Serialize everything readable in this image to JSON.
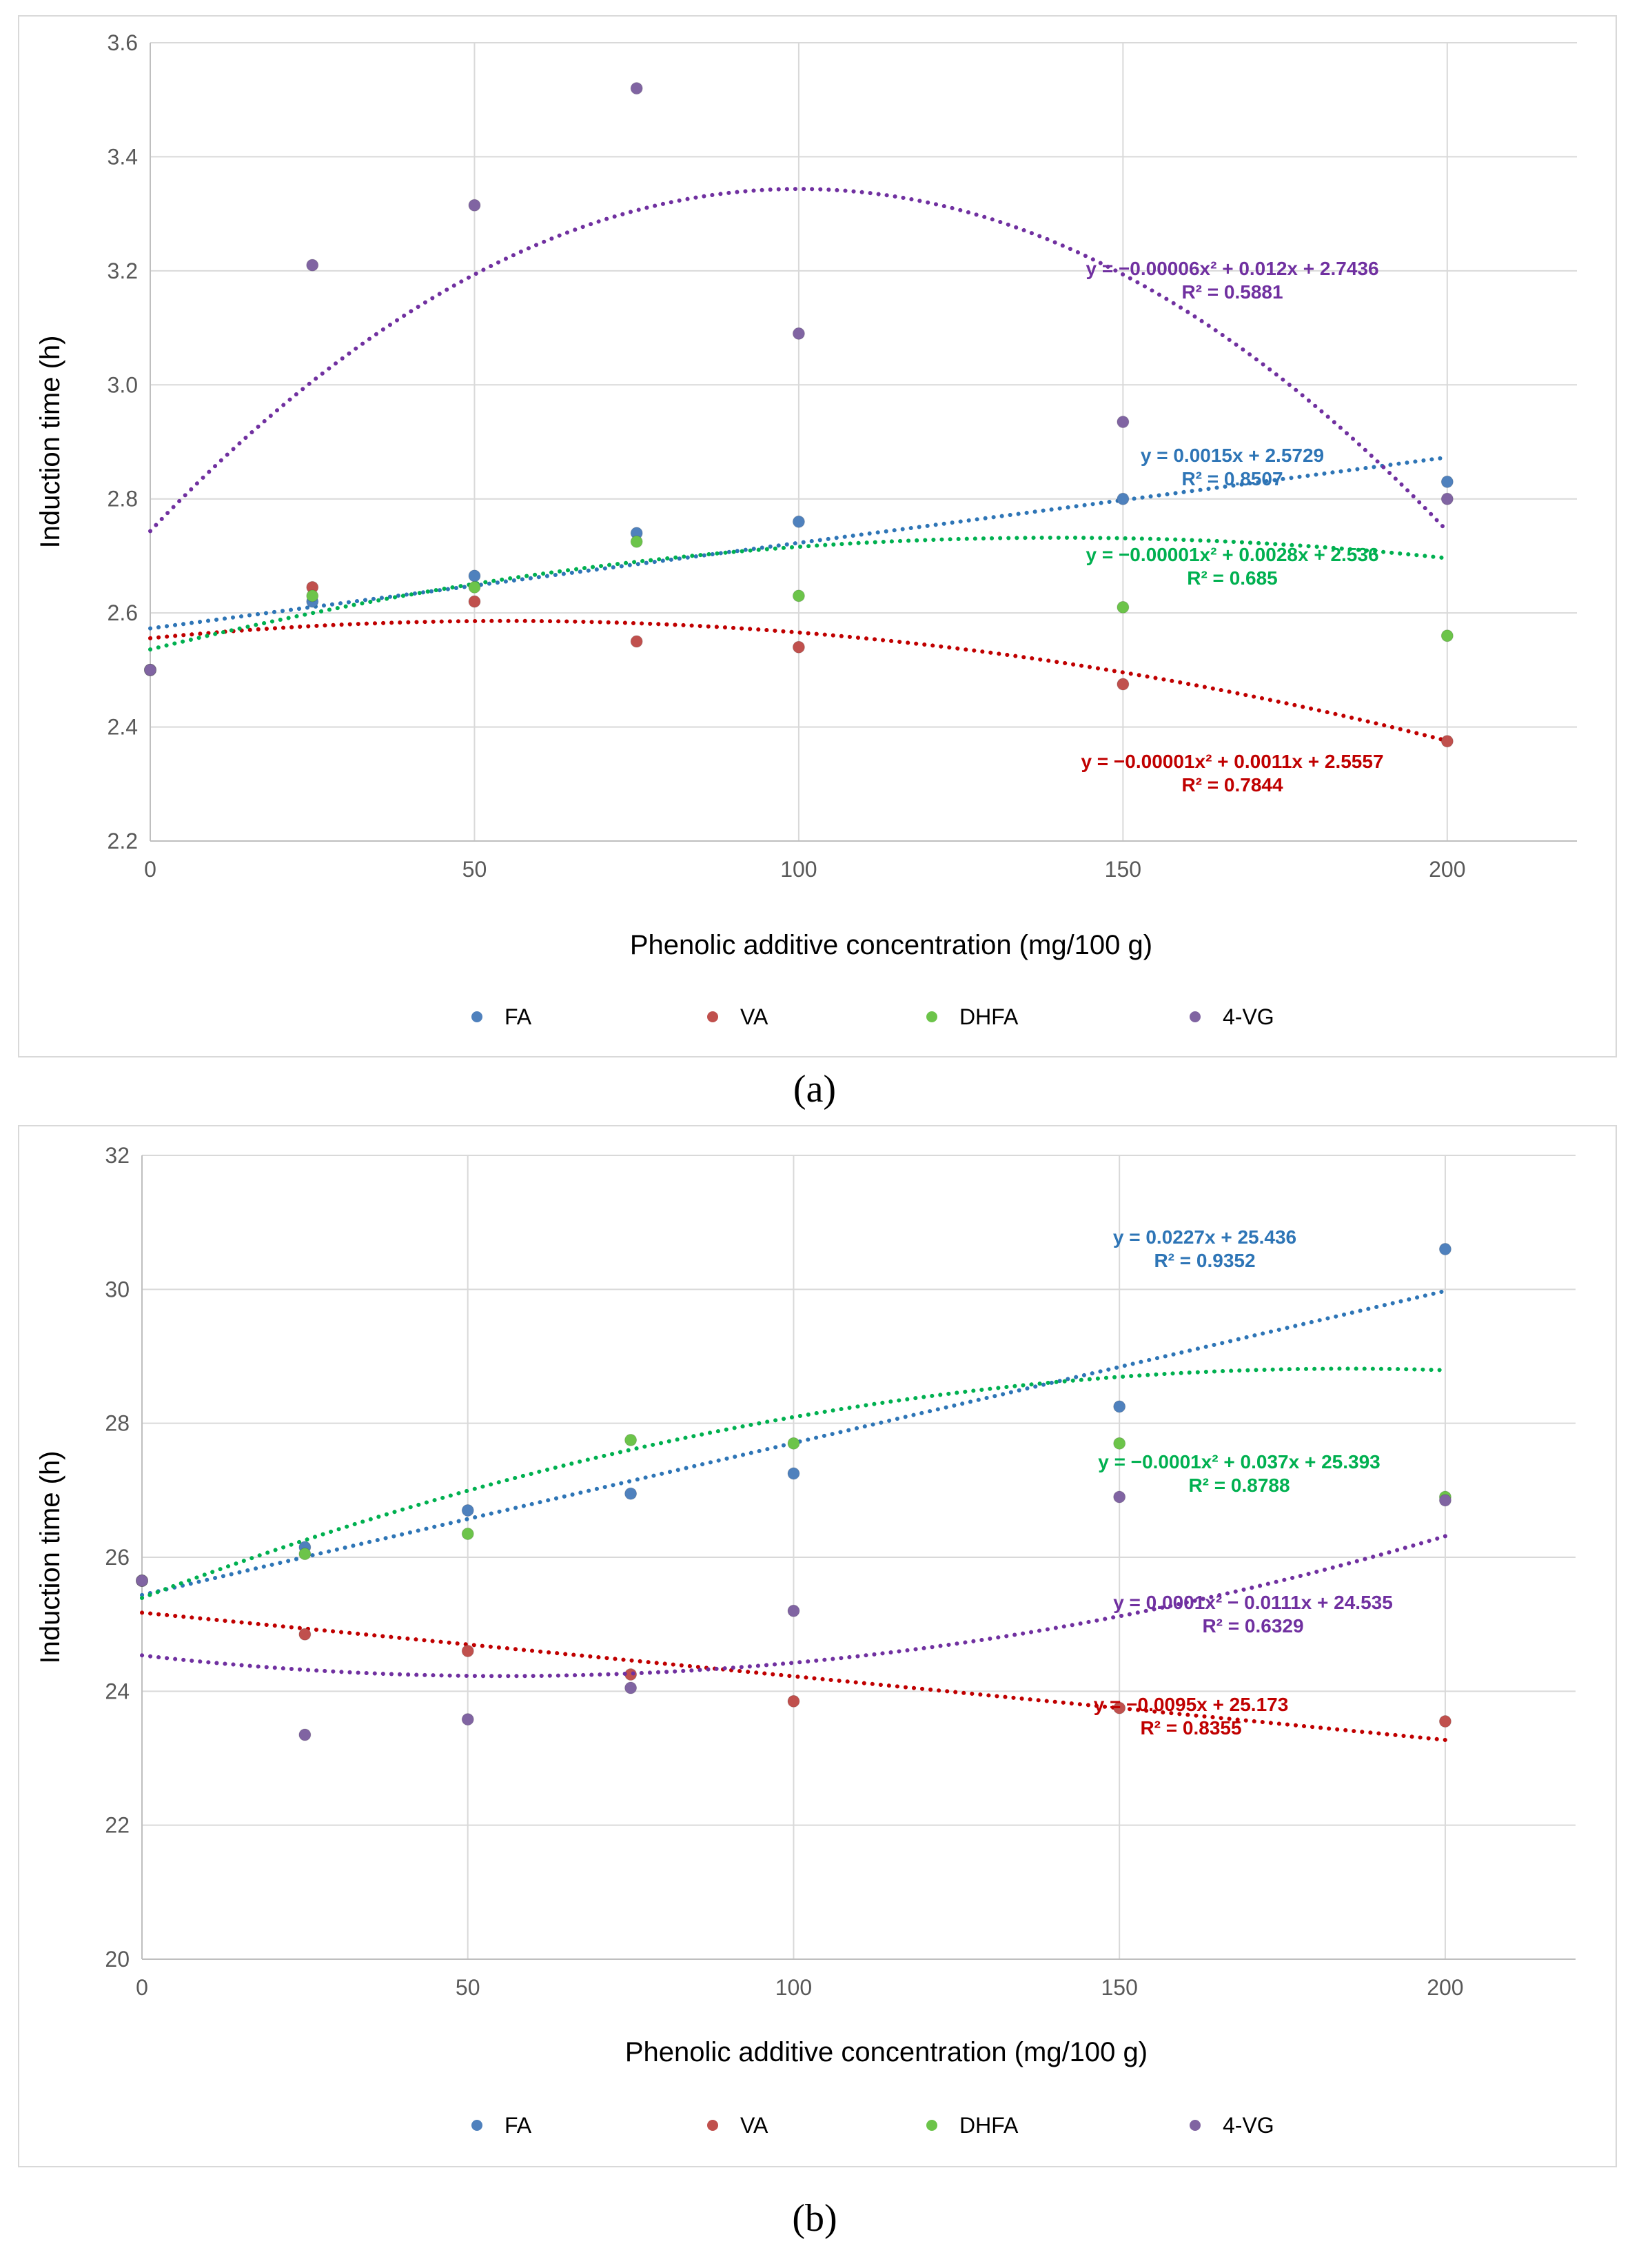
{
  "colors": {
    "FA": "#2e75b6",
    "VA": "#c00000",
    "DHFA": "#00b050",
    "4-VG": "#7030a0",
    "FA_marker": "#4f81bd",
    "VA_marker": "#c0504d",
    "DHFA_marker": "#6cc44a",
    "4-VG_marker": "#8064a2"
  },
  "panel_labels": {
    "a": "(a)",
    "b": "(b)"
  },
  "chart_data": [
    {
      "type": "scatter",
      "panel": "a",
      "xlabel": "Phenolic additive concentration (mg/100 g)",
      "ylabel": "Induction time (h)",
      "xlim": [
        0,
        220
      ],
      "ylim": [
        2.2,
        3.6
      ],
      "xticks": [
        0,
        50,
        100,
        150,
        200
      ],
      "xtick_labels": [
        "0",
        "50",
        "100",
        "150",
        "200"
      ],
      "yticks": [
        2.2,
        2.4,
        2.6,
        2.8,
        3.0,
        3.2,
        3.4,
        3.6
      ],
      "ytick_labels": [
        "2.2",
        "2.4",
        "2.6",
        "2.8",
        "3.0",
        "3.2",
        "3.4",
        "3.6"
      ],
      "grid": true,
      "legend": [
        "FA",
        "VA",
        "DHFA",
        "4-VG"
      ],
      "series": [
        {
          "name": "FA",
          "x": [
            0,
            25,
            50,
            75,
            100,
            150,
            200
          ],
          "y": [
            2.5,
            2.62,
            2.665,
            2.74,
            2.76,
            2.8,
            2.83
          ],
          "trend": {
            "type": "linear",
            "coef": [
              2.5729,
              0.0015
            ]
          },
          "eq": "y = 0.0015x + 2.5729",
          "r2": "R² = 0.8507"
        },
        {
          "name": "VA",
          "x": [
            0,
            25,
            50,
            75,
            100,
            150,
            200
          ],
          "y": [
            2.5,
            2.645,
            2.62,
            2.55,
            2.54,
            2.475,
            2.375
          ],
          "trend": {
            "type": "poly2",
            "coef": [
              2.5557,
              0.0011,
              -1e-05
            ]
          },
          "eq": "y = −0.00001x² + 0.0011x + 2.5557",
          "r2": "R² = 0.7844"
        },
        {
          "name": "DHFA",
          "x": [
            0,
            25,
            50,
            75,
            100,
            150,
            200
          ],
          "y": [
            2.5,
            2.63,
            2.645,
            2.725,
            2.63,
            2.61,
            2.56
          ],
          "trend": {
            "type": "poly2",
            "coef": [
              2.536,
              0.0028,
              -1e-05
            ]
          },
          "eq": "y = −0.00001x² + 0.0028x + 2.536",
          "r2": "R² = 0.685"
        },
        {
          "name": "4-VG",
          "x": [
            0,
            25,
            50,
            75,
            100,
            150,
            200
          ],
          "y": [
            2.5,
            3.21,
            3.315,
            3.52,
            3.09,
            2.935,
            2.8
          ],
          "trend": {
            "type": "poly2",
            "coef": [
              2.7436,
              0.012,
              -6e-05
            ]
          },
          "eq": "y = −0.00006x² + 0.012x + 2.7436",
          "r2": "R² = 0.5881"
        }
      ]
    },
    {
      "type": "scatter",
      "panel": "b",
      "xlabel": "Phenolic additive concentration (mg/100 g)",
      "ylabel": "Induction time (h)",
      "xlim": [
        0,
        220
      ],
      "ylim": [
        20,
        32
      ],
      "xticks": [
        0,
        50,
        100,
        150,
        200
      ],
      "xtick_labels": [
        "0",
        "50",
        "100",
        "150",
        "200"
      ],
      "yticks": [
        20,
        22,
        24,
        26,
        28,
        30,
        32
      ],
      "ytick_labels": [
        "20",
        "22",
        "24",
        "26",
        "28",
        "30",
        "32"
      ],
      "grid": true,
      "legend": [
        "FA",
        "VA",
        "DHFA",
        "4-VG"
      ],
      "series": [
        {
          "name": "FA",
          "x": [
            0,
            25,
            50,
            75,
            100,
            150,
            200
          ],
          "y": [
            25.65,
            26.15,
            26.7,
            26.95,
            27.25,
            28.25,
            30.6
          ],
          "trend": {
            "type": "linear",
            "coef": [
              25.436,
              0.0227
            ]
          },
          "eq": "y = 0.0227x + 25.436",
          "r2": "R² = 0.9352"
        },
        {
          "name": "VA",
          "x": [
            0,
            25,
            50,
            75,
            100,
            150,
            200
          ],
          "y": [
            25.65,
            24.85,
            24.6,
            24.25,
            23.85,
            23.75,
            23.55
          ],
          "trend": {
            "type": "linear",
            "coef": [
              25.173,
              -0.0095
            ]
          },
          "eq": "y = −0.0095x + 25.173",
          "r2": "R² = 0.8355"
        },
        {
          "name": "DHFA",
          "x": [
            0,
            25,
            50,
            75,
            100,
            150,
            200
          ],
          "y": [
            25.65,
            26.05,
            26.35,
            27.75,
            27.7,
            27.7,
            26.9
          ],
          "trend": {
            "type": "poly2",
            "coef": [
              25.393,
              0.037,
              -0.0001
            ]
          },
          "eq": "y = −0.0001x² + 0.037x + 25.393",
          "r2": "R² = 0.8788"
        },
        {
          "name": "4-VG",
          "x": [
            0,
            25,
            50,
            75,
            100,
            150,
            200
          ],
          "y": [
            25.65,
            23.35,
            23.58,
            24.05,
            25.2,
            26.9,
            26.85
          ],
          "trend": {
            "type": "poly2",
            "coef": [
              24.535,
              -0.0111,
              0.0001
            ]
          },
          "eq": "y = 0.0001x² − 0.0111x + 24.535",
          "r2": "R² = 0.6329"
        }
      ]
    }
  ]
}
